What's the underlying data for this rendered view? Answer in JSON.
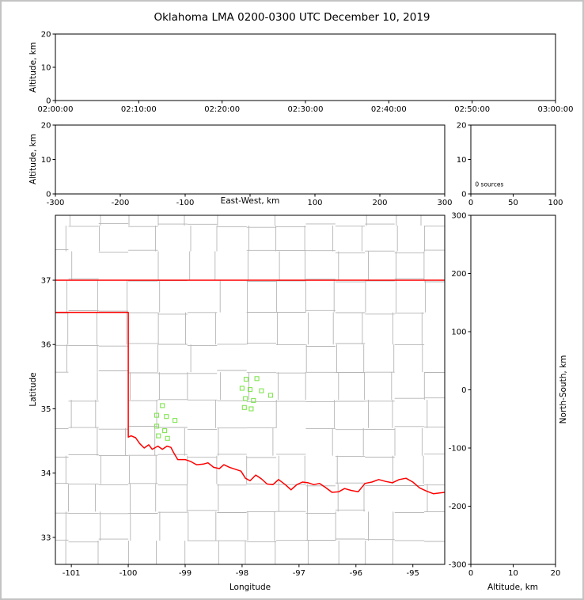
{
  "title": "Oklahoma LMA 0200-0300 UTC December 10, 2019",
  "colors": {
    "axis": "#000000",
    "tick_label": "#000000",
    "county_line": "#b5b5b5",
    "state_border": "#ff0000",
    "station_marker": "#80e550",
    "background": "#ffffff",
    "page_border": "#c3c3c3"
  },
  "chart_data": [
    {
      "id": "alt_time",
      "type": "scatter",
      "description": "altitude vs time panel (no sources plotted)",
      "xlabel": "",
      "ylabel": "Altitude, km",
      "xlim": [
        0,
        3600
      ],
      "ylim": [
        0,
        20
      ],
      "xticks": [
        {
          "v": 0,
          "label": "02:00:00"
        },
        {
          "v": 600,
          "label": "02:10:00"
        },
        {
          "v": 1200,
          "label": "02:20:00"
        },
        {
          "v": 1800,
          "label": "02:30:00"
        },
        {
          "v": 2400,
          "label": "02:40:00"
        },
        {
          "v": 3000,
          "label": "02:50:00"
        },
        {
          "v": 3600,
          "label": "03:00:00"
        }
      ],
      "yticks": [
        {
          "v": 0,
          "label": "0"
        },
        {
          "v": 10,
          "label": "10"
        },
        {
          "v": 20,
          "label": "20"
        }
      ],
      "points": []
    },
    {
      "id": "alt_ew",
      "type": "scatter",
      "description": "altitude vs east-west distance panel (no sources plotted)",
      "xlabel": "East-West, km",
      "xlabel_inline": true,
      "ylabel": "Altitude, km",
      "xlim": [
        -300,
        300
      ],
      "ylim": [
        0,
        20
      ],
      "xticks": [
        {
          "v": -300,
          "label": "-300"
        },
        {
          "v": -200,
          "label": "-200"
        },
        {
          "v": -100,
          "label": "-100"
        },
        {
          "v": 0,
          "label": ""
        },
        {
          "v": 100,
          "label": "100"
        },
        {
          "v": 200,
          "label": "200"
        },
        {
          "v": 300,
          "label": "300"
        }
      ],
      "yticks": [
        {
          "v": 0,
          "label": "0"
        },
        {
          "v": 10,
          "label": "10"
        },
        {
          "v": 20,
          "label": "20"
        }
      ],
      "points": []
    },
    {
      "id": "alt_hist",
      "type": "scatter",
      "description": "source-count histogram panel",
      "xlabel": "",
      "ylabel": "",
      "xlim": [
        0,
        100
      ],
      "ylim": [
        0,
        20
      ],
      "xticks": [
        {
          "v": 0,
          "label": "0"
        },
        {
          "v": 50,
          "label": "50"
        },
        {
          "v": 100,
          "label": "100"
        }
      ],
      "yticks": [
        {
          "v": 0,
          "label": "0"
        },
        {
          "v": 10,
          "label": "10"
        },
        {
          "v": 20,
          "label": "20"
        }
      ],
      "annotation": {
        "text": "0 sources",
        "x": 5,
        "y": 2.2
      },
      "points": []
    },
    {
      "id": "map",
      "type": "map-scatter",
      "description": "plan view map with county lines, state border and LMA station markers",
      "xlabel": "Longitude",
      "ylabel": "Latitude",
      "xlim": [
        -101.28,
        -94.44
      ],
      "ylim": [
        32.58,
        38.01
      ],
      "xticks": [
        {
          "v": -101,
          "label": "-101"
        },
        {
          "v": -100,
          "label": "-100"
        },
        {
          "v": -99,
          "label": "-99"
        },
        {
          "v": -98,
          "label": "-98"
        },
        {
          "v": -97,
          "label": "-97"
        },
        {
          "v": -96,
          "label": "-96"
        },
        {
          "v": -95,
          "label": "-95"
        }
      ],
      "yticks": [
        {
          "v": 33,
          "label": "33"
        },
        {
          "v": 34,
          "label": "34"
        },
        {
          "v": 35,
          "label": "35"
        },
        {
          "v": 36,
          "label": "36"
        },
        {
          "v": 37,
          "label": "37"
        }
      ],
      "stations": [
        [
          -99.4,
          35.05
        ],
        [
          -99.5,
          34.9
        ],
        [
          -99.33,
          34.88
        ],
        [
          -99.18,
          34.82
        ],
        [
          -99.5,
          34.73
        ],
        [
          -99.36,
          34.66
        ],
        [
          -99.47,
          34.58
        ],
        [
          -99.31,
          34.54
        ],
        [
          -97.93,
          35.46
        ],
        [
          -97.74,
          35.47
        ],
        [
          -98.0,
          35.32
        ],
        [
          -97.86,
          35.3
        ],
        [
          -97.66,
          35.28
        ],
        [
          -97.5,
          35.21
        ],
        [
          -97.94,
          35.16
        ],
        [
          -97.8,
          35.13
        ],
        [
          -97.96,
          35.02
        ],
        [
          -97.84,
          35.0
        ]
      ],
      "state_border": [
        [
          [
            -101.28,
            37.0
          ],
          [
            -94.44,
            37.0
          ]
        ],
        [
          [
            -101.28,
            36.5
          ],
          [
            -100.0,
            36.5
          ],
          [
            -100.0,
            34.56
          ],
          [
            -99.95,
            34.58
          ],
          [
            -99.87,
            34.55
          ],
          [
            -99.8,
            34.46
          ],
          [
            -99.72,
            34.39
          ],
          [
            -99.64,
            34.44
          ],
          [
            -99.58,
            34.37
          ],
          [
            -99.48,
            34.42
          ],
          [
            -99.4,
            34.37
          ],
          [
            -99.32,
            34.42
          ],
          [
            -99.25,
            34.4
          ],
          [
            -99.21,
            34.33
          ],
          [
            -99.13,
            34.21
          ],
          [
            -99.0,
            34.21
          ],
          [
            -98.9,
            34.18
          ],
          [
            -98.8,
            34.13
          ],
          [
            -98.68,
            34.14
          ],
          [
            -98.6,
            34.16
          ],
          [
            -98.5,
            34.09
          ],
          [
            -98.4,
            34.07
          ],
          [
            -98.32,
            34.13
          ],
          [
            -98.22,
            34.09
          ],
          [
            -98.12,
            34.06
          ],
          [
            -98.02,
            34.03
          ],
          [
            -97.94,
            33.92
          ],
          [
            -97.86,
            33.88
          ],
          [
            -97.76,
            33.97
          ],
          [
            -97.66,
            33.91
          ],
          [
            -97.56,
            33.83
          ],
          [
            -97.46,
            33.82
          ],
          [
            -97.36,
            33.9
          ],
          [
            -97.24,
            33.82
          ],
          [
            -97.14,
            33.74
          ],
          [
            -97.04,
            33.82
          ],
          [
            -96.94,
            33.86
          ],
          [
            -96.84,
            33.85
          ],
          [
            -96.74,
            33.82
          ],
          [
            -96.64,
            33.84
          ],
          [
            -96.54,
            33.78
          ],
          [
            -96.42,
            33.7
          ],
          [
            -96.3,
            33.71
          ],
          [
            -96.2,
            33.76
          ],
          [
            -96.08,
            33.73
          ],
          [
            -95.96,
            33.71
          ],
          [
            -95.84,
            33.84
          ],
          [
            -95.72,
            33.86
          ],
          [
            -95.6,
            33.9
          ],
          [
            -95.48,
            33.87
          ],
          [
            -95.36,
            33.85
          ],
          [
            -95.24,
            33.9
          ],
          [
            -95.12,
            33.92
          ],
          [
            -95.0,
            33.86
          ],
          [
            -94.88,
            33.77
          ],
          [
            -94.76,
            33.72
          ],
          [
            -94.64,
            33.68
          ],
          [
            -94.44,
            33.7
          ]
        ]
      ],
      "county_grid": {
        "lons": [
          -101.05,
          -100.52,
          -100.0,
          -99.48,
          -98.96,
          -98.44,
          -97.92,
          -97.4,
          -96.88,
          -96.36,
          -95.84,
          -95.32,
          -94.8
        ],
        "lats": [
          32.95,
          33.4,
          33.83,
          34.27,
          34.7,
          35.14,
          35.57,
          36.0,
          36.5,
          37.0,
          37.45,
          37.85
        ],
        "jitter_x": 0.12,
        "jitter_y": 0.06,
        "skip": 0.12
      }
    },
    {
      "id": "alt_ns",
      "type": "scatter",
      "description": "north-south distance vs altitude panel (no sources plotted)",
      "xlabel": "Altitude, km",
      "ylabel_right": "North-South, km",
      "xlim": [
        0,
        20
      ],
      "ylim": [
        -300,
        300
      ],
      "xticks": [
        {
          "v": 0,
          "label": "0"
        },
        {
          "v": 10,
          "label": "10"
        },
        {
          "v": 20,
          "label": "20"
        }
      ],
      "yticks": [
        {
          "v": -300,
          "label": "-300"
        },
        {
          "v": -200,
          "label": "-200"
        },
        {
          "v": -100,
          "label": "-100"
        },
        {
          "v": 0,
          "label": "0"
        },
        {
          "v": 100,
          "label": "100"
        },
        {
          "v": 200,
          "label": "200"
        },
        {
          "v": 300,
          "label": "300"
        }
      ],
      "points": []
    }
  ]
}
